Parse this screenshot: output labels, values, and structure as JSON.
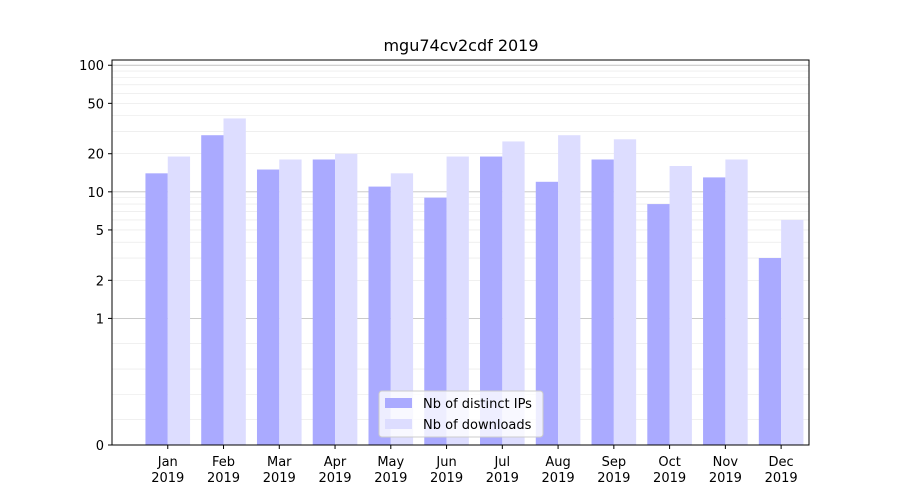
{
  "chart_data": {
    "type": "bar",
    "title": "mgu74cv2cdf 2019",
    "xlabel": "",
    "ylabel": "",
    "yscale": "symlog",
    "ylim": [
      0,
      110
    ],
    "yticks": [
      0,
      1,
      2,
      5,
      10,
      20,
      50,
      100
    ],
    "ytick_labels": [
      "0",
      "1",
      "2",
      "5",
      "10",
      "20",
      "50",
      "100"
    ],
    "categories": [
      "Jan\n2019",
      "Feb\n2019",
      "Mar\n2019",
      "Apr\n2019",
      "May\n2019",
      "Jun\n2019",
      "Jul\n2019",
      "Aug\n2019",
      "Sep\n2019",
      "Oct\n2019",
      "Nov\n2019",
      "Dec\n2019"
    ],
    "series": [
      {
        "name": "Nb of distinct IPs",
        "color": "#aaaaff",
        "values": [
          14,
          28,
          15,
          18,
          11,
          9,
          19,
          12,
          18,
          8,
          13,
          3
        ]
      },
      {
        "name": "Nb of downloads",
        "color": "#ddddff",
        "values": [
          19,
          38,
          18,
          20,
          14,
          19,
          25,
          28,
          26,
          16,
          18,
          6
        ]
      }
    ],
    "grid": true,
    "legend_position": "bottom-center"
  }
}
